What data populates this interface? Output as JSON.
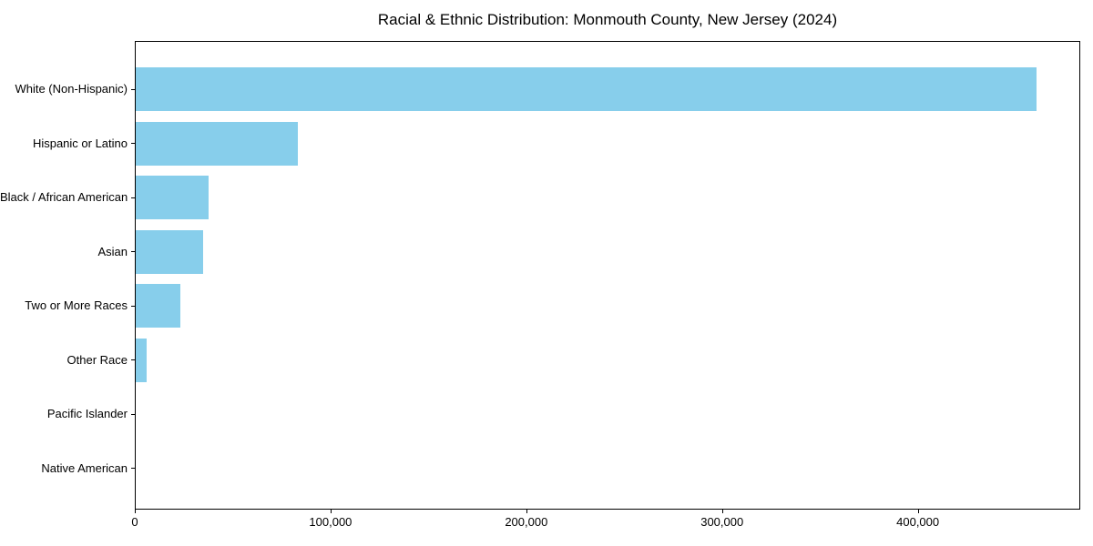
{
  "title": "Racial & Ethnic Distribution: Monmouth County, New Jersey (2024)",
  "colors": {
    "bar": "#87CEEB",
    "axis": "#000000",
    "background": "#FFFFFF",
    "text": "#000000"
  },
  "chart_data": {
    "type": "bar",
    "orientation": "horizontal",
    "title": "Racial & Ethnic Distribution: Monmouth County, New Jersey (2024)",
    "categories": [
      "White (Non-Hispanic)",
      "Hispanic or Latino",
      "Black / African American",
      "Asian",
      "Two or More Races",
      "Other Race",
      "Pacific Islander",
      "Native American"
    ],
    "values": [
      460000,
      83000,
      37000,
      34500,
      23000,
      5600,
      200,
      100
    ],
    "xlabel": "",
    "ylabel": "",
    "xlim": [
      0,
      483000
    ],
    "x_ticks": [
      0,
      100000,
      200000,
      300000,
      400000
    ],
    "x_tick_labels": [
      "0",
      "100,000",
      "200,000",
      "300,000",
      "400,000"
    ],
    "grid": false,
    "legend": false,
    "bar_color": "#87CEEB",
    "categories_order": "top-to-bottom"
  }
}
